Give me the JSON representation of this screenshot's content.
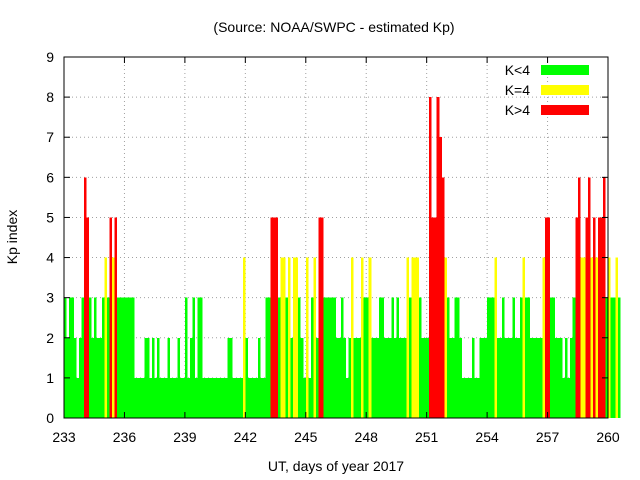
{
  "chart_data": {
    "type": "bar",
    "title": "(Source: NOAA/SWPC - estimated Kp)",
    "xlabel": "UT, days of year 2017",
    "ylabel": "Kp index",
    "xlim": [
      233,
      260
    ],
    "ylim": [
      0,
      9
    ],
    "xticks": [
      "233",
      "236",
      "239",
      "242",
      "245",
      "248",
      "251",
      "254",
      "257",
      "260"
    ],
    "yticks": [
      "0",
      "1",
      "2",
      "3",
      "4",
      "5",
      "6",
      "7",
      "8",
      "9"
    ],
    "grid": true,
    "legend_position": "top-right",
    "interval_days": 0.125,
    "series": [
      {
        "name": "K<4",
        "color": "#00ff00"
      },
      {
        "name": "K=4",
        "color": "#ffff00"
      },
      {
        "name": "K>4",
        "color": "#ff0000"
      }
    ],
    "x_start": 233,
    "values": [
      3,
      2,
      3,
      3,
      2,
      1,
      2,
      3,
      6,
      5,
      3,
      2,
      3,
      2,
      2,
      3,
      4,
      3,
      5,
      4,
      5,
      3,
      3,
      3,
      3,
      3,
      3,
      3,
      1,
      1,
      1,
      1,
      2,
      2,
      1,
      2,
      1,
      2,
      1,
      1,
      1,
      2,
      1,
      1,
      1,
      2,
      1,
      1,
      3,
      1,
      2,
      3,
      1,
      3,
      3,
      1,
      1,
      1,
      1,
      1,
      1,
      1,
      1,
      1,
      1,
      2,
      2,
      1,
      1,
      1,
      1,
      4,
      2,
      1,
      1,
      1,
      1,
      2,
      1,
      1,
      3,
      3,
      5,
      5,
      5,
      3,
      4,
      4,
      3,
      4,
      2,
      4,
      4,
      3,
      2,
      1,
      4,
      1,
      3,
      4,
      2,
      5,
      5,
      3,
      3,
      3,
      3,
      3,
      2,
      2,
      3,
      2,
      1,
      2,
      4,
      2,
      2,
      2,
      4,
      3,
      3,
      4,
      2,
      2,
      2,
      3,
      3,
      2,
      2,
      2,
      3,
      2,
      3,
      2,
      2,
      2,
      4,
      3,
      4,
      4,
      4,
      3,
      2,
      2,
      2,
      8,
      5,
      5,
      8,
      7,
      6,
      4,
      3,
      2,
      2,
      3,
      3,
      2,
      1,
      1,
      1,
      1,
      2,
      1,
      1,
      2,
      2,
      2,
      3,
      3,
      3,
      4,
      2,
      2,
      3,
      2,
      2,
      2,
      3,
      2,
      2,
      3,
      4,
      3,
      3,
      2,
      2,
      2,
      2,
      2,
      4,
      5,
      5,
      3,
      3,
      2,
      2,
      2,
      1,
      2,
      1,
      2,
      3,
      5,
      6,
      4,
      4,
      5,
      6,
      4,
      5,
      4,
      5,
      5,
      6,
      3,
      4,
      3,
      3,
      4,
      3
    ]
  }
}
